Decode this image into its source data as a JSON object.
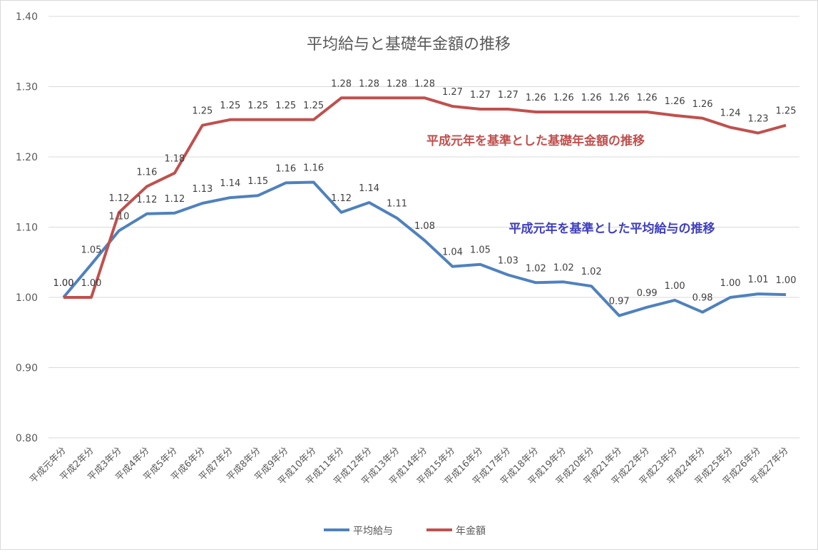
{
  "chart_data": {
    "type": "line",
    "title": "平均給与と基礎年金額の推移",
    "xlabel": "",
    "ylabel": "",
    "ylim": [
      0.8,
      1.4
    ],
    "yticks": [
      "0.80",
      "0.90",
      "1.00",
      "1.10",
      "1.20",
      "1.30",
      "1.40"
    ],
    "grid": true,
    "legend_position": "bottom",
    "categories": [
      "平成元年分",
      "平成2年分",
      "平成3年分",
      "平成4年分",
      "平成5年分",
      "平成6年分",
      "平成7年分",
      "平成8年分",
      "平成9年分",
      "平成10年分",
      "平成11年分",
      "平成12年分",
      "平成13年分",
      "平成14年分",
      "平成15年分",
      "平成16年分",
      "平成17年分",
      "平成18年分",
      "平成19年分",
      "平成20年分",
      "平成21年分",
      "平成22年分",
      "平成23年分",
      "平成24年分",
      "平成25年分",
      "平成26年分",
      "平成27年分"
    ],
    "series": [
      {
        "name": "平均給与",
        "color": "#4f81bd",
        "values": [
          1.0,
          1.047,
          1.095,
          1.119,
          1.12,
          1.134,
          1.142,
          1.145,
          1.163,
          1.164,
          1.121,
          1.135,
          1.113,
          1.081,
          1.044,
          1.047,
          1.032,
          1.021,
          1.022,
          1.016,
          0.974,
          0.986,
          0.996,
          0.979,
          1.0,
          1.005,
          1.004
        ],
        "labels": [
          "1.00",
          "1.05",
          "1.10",
          "1.12",
          "1.12",
          "1.13",
          "1.14",
          "1.15",
          "1.16",
          "1.16",
          "1.12",
          "1.14",
          "1.11",
          "1.08",
          "1.04",
          "1.05",
          "1.03",
          "1.02",
          "1.02",
          "1.02",
          "0.97",
          "0.99",
          "1.00",
          "0.98",
          "1.00",
          "1.01",
          "1.00"
        ]
      },
      {
        "name": "年金額",
        "color": "#c0504d",
        "values": [
          1.0,
          1.0,
          1.121,
          1.158,
          1.177,
          1.245,
          1.253,
          1.253,
          1.253,
          1.253,
          1.284,
          1.284,
          1.284,
          1.284,
          1.272,
          1.268,
          1.268,
          1.264,
          1.264,
          1.264,
          1.264,
          1.264,
          1.259,
          1.255,
          1.242,
          1.234,
          1.245
        ],
        "labels": [
          "1.00",
          "1.00",
          "1.12",
          "1.16",
          "1.18",
          "1.25",
          "1.25",
          "1.25",
          "1.25",
          "1.25",
          "1.28",
          "1.28",
          "1.28",
          "1.28",
          "1.27",
          "1.27",
          "1.27",
          "1.26",
          "1.26",
          "1.26",
          "1.26",
          "1.26",
          "1.26",
          "1.26",
          "1.24",
          "1.23",
          "1.25"
        ]
      }
    ],
    "annotations": [
      {
        "text": "平成元年を基準とした基礎年金額の推移",
        "color": "#c0504d"
      },
      {
        "text": "平成元年を基準とした平均給与の推移",
        "color": "#3f3fbf"
      }
    ]
  }
}
